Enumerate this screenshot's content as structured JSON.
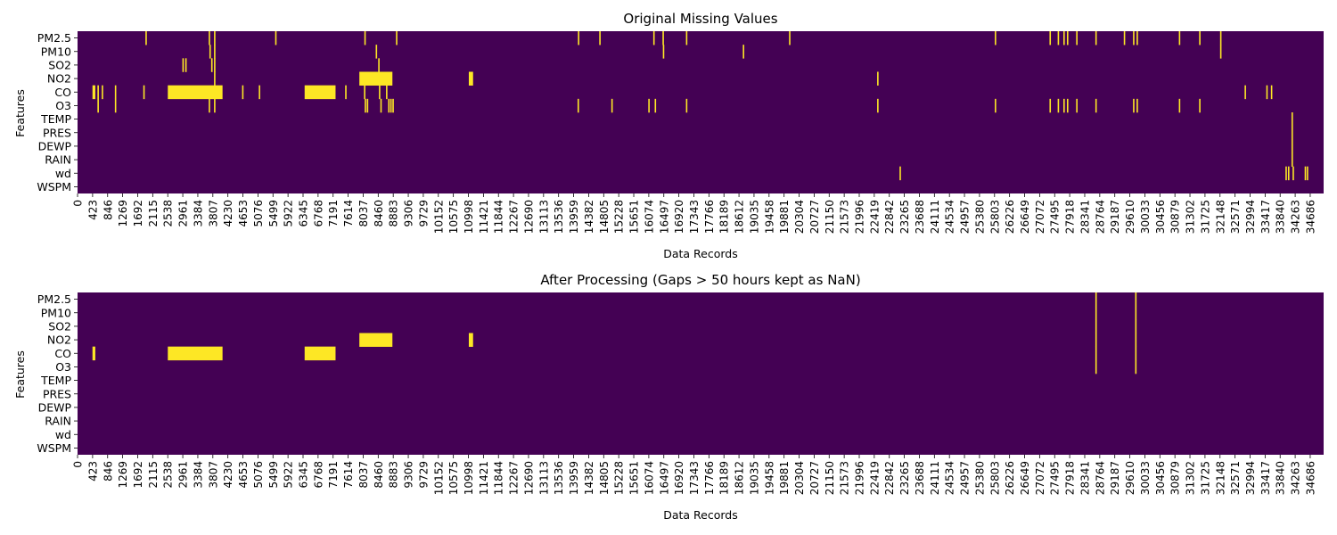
{
  "colors": {
    "missing": "#fde725",
    "present": "#440154",
    "text": "#000000"
  },
  "chart_data": [
    {
      "type": "heatmap",
      "title": "Original Missing Values",
      "xlabel": "Data Records",
      "ylabel": "Features",
      "features": [
        "PM2.5",
        "PM10",
        "SO2",
        "NO2",
        "CO",
        "O3",
        "TEMP",
        "PRES",
        "DEWP",
        "RAIN",
        "wd",
        "WSPM"
      ],
      "xlim": [
        0,
        35064
      ],
      "xticks": [
        "0",
        "423",
        "846",
        "1269",
        "1692",
        "2115",
        "2538",
        "2961",
        "3384",
        "3807",
        "4230",
        "4653",
        "5076",
        "5499",
        "5922",
        "6345",
        "6768",
        "7191",
        "7614",
        "8037",
        "8460",
        "8883",
        "9306",
        "9729",
        "10152",
        "10575",
        "10998",
        "11421",
        "11844",
        "12267",
        "12690",
        "13113",
        "13536",
        "13959",
        "14382",
        "14805",
        "15228",
        "15651",
        "16074",
        "16497",
        "16920",
        "17343",
        "17766",
        "18189",
        "18612",
        "19035",
        "19458",
        "19881",
        "20304",
        "20727",
        "21150",
        "21573",
        "21996",
        "22419",
        "22842",
        "23265",
        "23688",
        "24111",
        "24534",
        "24957",
        "25380",
        "25803",
        "26226",
        "26649",
        "27072",
        "27495",
        "27918",
        "28341",
        "28764",
        "29187",
        "29610",
        "30033",
        "30456",
        "30879",
        "31302",
        "31725",
        "32148",
        "32571",
        "32994",
        "33417",
        "33840",
        "34263",
        "34686"
      ],
      "missing": {
        "PM2.5": [
          [
            1910,
            1950
          ],
          [
            3690,
            3710
          ],
          [
            3840,
            3880
          ],
          [
            5560,
            5580
          ],
          [
            8070,
            8090
          ],
          [
            8960,
            8980
          ],
          [
            14080,
            14100
          ],
          [
            14680,
            14700
          ],
          [
            16200,
            16220
          ],
          [
            16460,
            16480
          ],
          [
            17120,
            17140
          ],
          [
            20020,
            20040
          ],
          [
            25810,
            25830
          ],
          [
            27350,
            27370
          ],
          [
            27580,
            27600
          ],
          [
            27740,
            27780
          ],
          [
            27840,
            27870
          ],
          [
            28100,
            28130
          ],
          [
            28640,
            28680
          ],
          [
            29440,
            29460
          ],
          [
            29700,
            29730
          ],
          [
            29800,
            29830
          ],
          [
            30990,
            31010
          ],
          [
            31560,
            31580
          ],
          [
            32150,
            32170
          ]
        ],
        "PM10": [
          [
            3710,
            3730
          ],
          [
            3840,
            3880
          ],
          [
            8390,
            8410
          ],
          [
            16470,
            16490
          ],
          [
            18720,
            18740
          ],
          [
            32150,
            32170
          ]
        ],
        "SO2": [
          [
            2950,
            2970
          ],
          [
            3030,
            3050
          ],
          [
            3760,
            3780
          ],
          [
            3840,
            3880
          ],
          [
            8460,
            8480
          ]
        ],
        "NO2": [
          [
            3840,
            3880
          ],
          [
            7930,
            8860
          ],
          [
            11010,
            11130
          ],
          [
            22500,
            22530
          ]
        ],
        "CO": [
          [
            420,
            500
          ],
          [
            560,
            580
          ],
          [
            680,
            700
          ],
          [
            1050,
            1070
          ],
          [
            1850,
            1880
          ],
          [
            2540,
            4080
          ],
          [
            4630,
            4650
          ],
          [
            5100,
            5120
          ],
          [
            6390,
            7260
          ],
          [
            7530,
            7560
          ],
          [
            8060,
            8090
          ],
          [
            8480,
            8500
          ],
          [
            8680,
            8700
          ],
          [
            32840,
            32870
          ],
          [
            33450,
            33480
          ],
          [
            33580,
            33610
          ]
        ],
        "O3": [
          [
            560,
            580
          ],
          [
            1050,
            1070
          ],
          [
            3690,
            3710
          ],
          [
            3840,
            3880
          ],
          [
            8080,
            8100
          ],
          [
            8140,
            8160
          ],
          [
            8520,
            8540
          ],
          [
            8740,
            8760
          ],
          [
            8800,
            8820
          ],
          [
            8860,
            8880
          ],
          [
            14070,
            14090
          ],
          [
            15020,
            15040
          ],
          [
            16060,
            16080
          ],
          [
            16240,
            16260
          ],
          [
            17120,
            17140
          ],
          [
            22500,
            22530
          ],
          [
            25810,
            25830
          ],
          [
            27350,
            27370
          ],
          [
            27580,
            27600
          ],
          [
            27740,
            27780
          ],
          [
            27840,
            27870
          ],
          [
            28100,
            28130
          ],
          [
            28640,
            28680
          ],
          [
            29700,
            29730
          ],
          [
            29800,
            29830
          ],
          [
            30990,
            31010
          ],
          [
            31560,
            31580
          ]
        ],
        "TEMP": [
          [
            34160,
            34180
          ]
        ],
        "PRES": [
          [
            34160,
            34180
          ]
        ],
        "DEWP": [
          [
            34160,
            34180
          ]
        ],
        "RAIN": [
          [
            34160,
            34180
          ]
        ],
        "wd": [
          [
            23130,
            23160
          ],
          [
            33990,
            34010
          ],
          [
            34060,
            34080
          ],
          [
            34190,
            34210
          ],
          [
            34530,
            34550
          ],
          [
            34590,
            34610
          ]
        ],
        "WSPM": []
      }
    },
    {
      "type": "heatmap",
      "title": "After Processing (Gaps > 50 hours kept as NaN)",
      "xlabel": "Data Records",
      "ylabel": "Features",
      "features": [
        "PM2.5",
        "PM10",
        "SO2",
        "NO2",
        "CO",
        "O3",
        "TEMP",
        "PRES",
        "DEWP",
        "RAIN",
        "wd",
        "WSPM"
      ],
      "xlim": [
        0,
        35064
      ],
      "xticks": [
        "0",
        "423",
        "846",
        "1269",
        "1692",
        "2115",
        "2538",
        "2961",
        "3384",
        "3807",
        "4230",
        "4653",
        "5076",
        "5499",
        "5922",
        "6345",
        "6768",
        "7191",
        "7614",
        "8037",
        "8460",
        "8883",
        "9306",
        "9729",
        "10152",
        "10575",
        "10998",
        "11421",
        "11844",
        "12267",
        "12690",
        "13113",
        "13536",
        "13959",
        "14382",
        "14805",
        "15228",
        "15651",
        "16074",
        "16497",
        "16920",
        "17343",
        "17766",
        "18189",
        "18612",
        "19035",
        "19458",
        "19881",
        "20304",
        "20727",
        "21150",
        "21573",
        "21996",
        "22419",
        "22842",
        "23265",
        "23688",
        "24111",
        "24534",
        "24957",
        "25380",
        "25803",
        "26226",
        "26649",
        "27072",
        "27495",
        "27918",
        "28341",
        "28764",
        "29187",
        "29610",
        "30033",
        "30456",
        "30879",
        "31302",
        "31725",
        "32148",
        "32571",
        "32994",
        "33417",
        "33840",
        "34263",
        "34686"
      ],
      "missing": {
        "PM2.5": [
          [
            28640,
            28680
          ],
          [
            29760,
            29800
          ]
        ],
        "PM10": [
          [
            28640,
            28680
          ],
          [
            29760,
            29800
          ]
        ],
        "SO2": [
          [
            28640,
            28680
          ],
          [
            29760,
            29800
          ]
        ],
        "NO2": [
          [
            7930,
            8860
          ],
          [
            11010,
            11130
          ],
          [
            28640,
            28680
          ],
          [
            29760,
            29800
          ]
        ],
        "CO": [
          [
            420,
            500
          ],
          [
            2540,
            4080
          ],
          [
            6390,
            7260
          ],
          [
            28640,
            28680
          ],
          [
            29760,
            29800
          ]
        ],
        "O3": [
          [
            28640,
            28680
          ],
          [
            29760,
            29800
          ]
        ],
        "TEMP": [],
        "PRES": [],
        "DEWP": [],
        "RAIN": [],
        "wd": [],
        "WSPM": []
      }
    }
  ]
}
